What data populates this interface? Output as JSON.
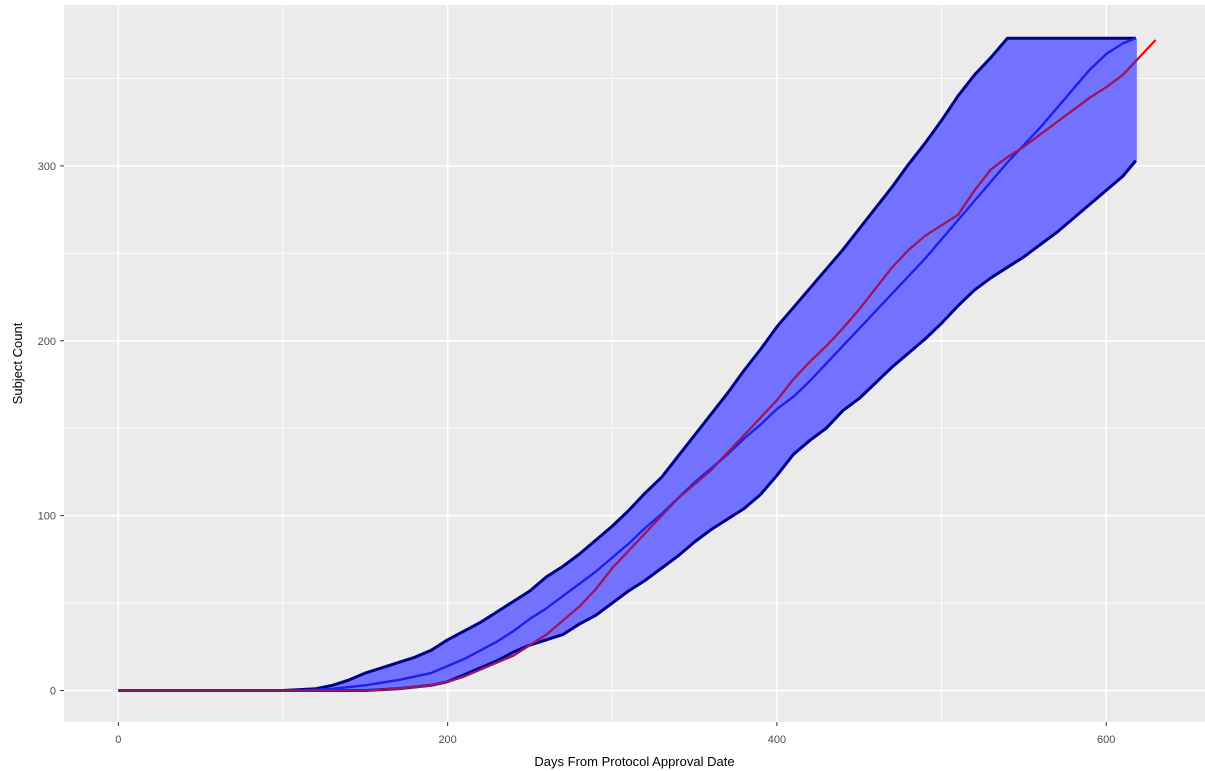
{
  "chart_data": {
    "type": "area",
    "title": "",
    "xlabel": "Days From Protocol Approval Date",
    "ylabel": "Subject Count",
    "xlim": [
      -33,
      660
    ],
    "ylim": [
      -18,
      392
    ],
    "x_ticks": [
      0,
      200,
      400,
      600
    ],
    "x_tick_labels": [
      "0",
      "200",
      "400",
      "600"
    ],
    "y_ticks": [
      0,
      100,
      200,
      300
    ],
    "y_tick_labels": [
      "0",
      "100",
      "200",
      "300"
    ],
    "grid": true,
    "legend": "none",
    "colors": {
      "panel_background": "#ebebeb",
      "grid": "#ffffff",
      "band_fill": "#7272ff",
      "band_edge": "#00008b",
      "median_line": "#1f1fef",
      "observed_line": "#ff0000",
      "observed_over_band": "#8b1a6b",
      "tick_text": "#4d4d4d",
      "axis_text": "#000000"
    },
    "series": [
      {
        "role": "band_upper",
        "x": [
          0,
          100,
          120,
          130,
          140,
          150,
          160,
          170,
          180,
          190,
          200,
          210,
          220,
          230,
          240,
          250,
          260,
          270,
          280,
          290,
          300,
          310,
          320,
          330,
          340,
          350,
          360,
          370,
          380,
          390,
          400,
          410,
          420,
          430,
          440,
          450,
          460,
          470,
          480,
          490,
          500,
          510,
          520,
          530,
          540,
          550,
          560,
          570,
          580,
          590,
          600,
          610,
          618
        ],
        "y": [
          0,
          0,
          1,
          3,
          6,
          10,
          13,
          16,
          19,
          23,
          29,
          34,
          39,
          45,
          51,
          57,
          65,
          71,
          78,
          86,
          94,
          103,
          113,
          122,
          134,
          146,
          158,
          170,
          183,
          195,
          208,
          219,
          230,
          241,
          252,
          264,
          276,
          288,
          301,
          313,
          326,
          340,
          352,
          362,
          373,
          373,
          373,
          373,
          373,
          373,
          373,
          373,
          373
        ]
      },
      {
        "role": "band_lower",
        "x": [
          0,
          150,
          170,
          180,
          190,
          200,
          210,
          220,
          230,
          240,
          250,
          260,
          270,
          280,
          290,
          300,
          310,
          320,
          330,
          340,
          350,
          360,
          370,
          380,
          390,
          400,
          410,
          420,
          430,
          440,
          450,
          460,
          470,
          480,
          490,
          500,
          510,
          520,
          530,
          540,
          550,
          560,
          570,
          580,
          590,
          600,
          610,
          618
        ],
        "y": [
          0,
          0,
          1,
          2,
          3,
          5,
          9,
          13,
          17,
          22,
          26,
          29,
          32,
          38,
          43,
          50,
          57,
          63,
          70,
          77,
          85,
          92,
          98,
          104,
          112,
          123,
          135,
          143,
          150,
          160,
          167,
          176,
          185,
          193,
          201,
          210,
          220,
          229,
          236,
          242,
          248,
          255,
          262,
          270,
          278,
          286,
          294,
          303
        ]
      },
      {
        "role": "median",
        "x": [
          0,
          110,
          130,
          150,
          170,
          190,
          200,
          210,
          220,
          230,
          240,
          250,
          260,
          270,
          280,
          290,
          300,
          310,
          320,
          330,
          340,
          350,
          360,
          370,
          380,
          390,
          400,
          410,
          420,
          430,
          440,
          450,
          460,
          470,
          480,
          490,
          500,
          510,
          520,
          530,
          540,
          550,
          560,
          570,
          580,
          590,
          600,
          610,
          618
        ],
        "y": [
          0,
          0,
          1,
          3,
          6,
          10,
          14,
          18,
          23,
          28,
          34,
          41,
          47,
          54,
          61,
          68,
          76,
          84,
          93,
          101,
          110,
          119,
          127,
          135,
          144,
          152,
          161,
          168,
          177,
          187,
          197,
          207,
          217,
          227,
          237,
          247,
          258,
          269,
          280,
          291,
          302,
          312,
          322,
          333,
          344,
          355,
          364,
          370,
          373
        ]
      },
      {
        "role": "observed",
        "x": [
          0,
          150,
          170,
          190,
          200,
          210,
          220,
          230,
          240,
          250,
          260,
          270,
          280,
          290,
          300,
          310,
          320,
          330,
          340,
          350,
          360,
          370,
          380,
          390,
          400,
          410,
          420,
          430,
          440,
          450,
          460,
          470,
          480,
          490,
          500,
          510,
          520,
          530,
          540,
          550,
          560,
          570,
          580,
          590,
          600,
          610,
          620,
          630
        ],
        "y": [
          0,
          0,
          1,
          3,
          5,
          8,
          12,
          16,
          20,
          26,
          32,
          40,
          48,
          58,
          70,
          80,
          90,
          100,
          110,
          118,
          126,
          136,
          146,
          156,
          166,
          178,
          188,
          197,
          207,
          218,
          230,
          242,
          252,
          260,
          266,
          272,
          286,
          298,
          305,
          311,
          318,
          325,
          332,
          339,
          345,
          352,
          362,
          372
        ]
      }
    ]
  }
}
